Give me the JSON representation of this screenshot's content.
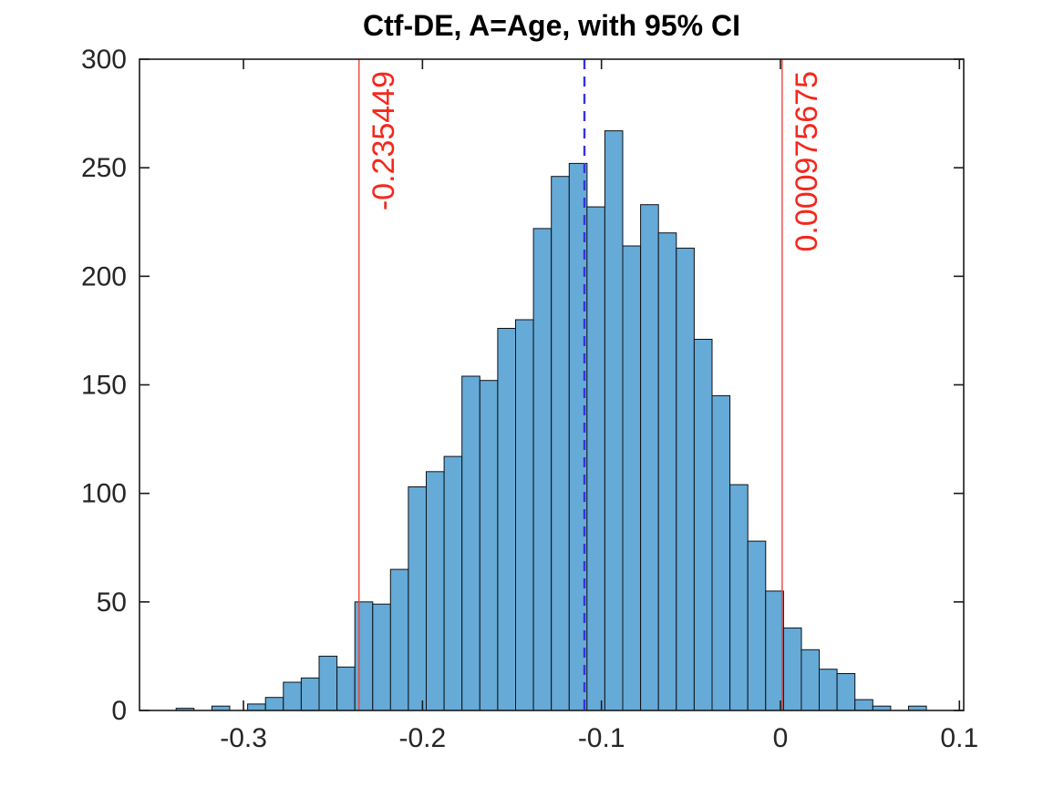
{
  "title": "Ctf-DE, A=Age, with 95% CI",
  "chart_data": {
    "type": "bar",
    "subtype": "histogram",
    "title": "Ctf-DE, A=Age, with 95% CI",
    "xlabel": "",
    "ylabel": "",
    "bin_start": -0.3376,
    "bin_width": 0.00998,
    "counts": [
      1,
      0,
      2,
      0,
      3,
      6,
      13,
      15,
      25,
      20,
      50,
      49,
      65,
      103,
      110,
      117,
      154,
      152,
      176,
      180,
      222,
      246,
      252,
      232,
      267,
      214,
      233,
      220,
      213,
      171,
      145,
      104,
      78,
      55,
      38,
      28,
      19,
      17,
      5,
      2,
      0,
      2
    ],
    "total_samples": 4004,
    "xlim": [
      -0.3581,
      0.1024
    ],
    "ylim": [
      0,
      300
    ],
    "x_ticks": [
      -0.3,
      -0.2,
      -0.1,
      0,
      0.1
    ],
    "x_tick_labels": [
      "-0.3",
      "-0.2",
      "-0.1",
      "0",
      "0.1"
    ],
    "y_ticks": [
      0,
      50,
      100,
      150,
      200,
      250,
      300
    ],
    "y_tick_labels": [
      "0",
      "50",
      "100",
      "150",
      "200",
      "250",
      "300"
    ],
    "grid": false,
    "legend": "none",
    "ci_lower": {
      "value": -0.235449,
      "label": "-0.235449"
    },
    "ci_upper": {
      "value": 0.000975675,
      "label": "0.000975675"
    },
    "estimate_line": {
      "value": -0.1095,
      "style": "dashed"
    },
    "colors": {
      "bar_fill": "#66AAD7",
      "bar_edge": "#0D1117",
      "ci_line": "#E8463A",
      "ci_text": "#F5271C",
      "estimate_line": "#3333E0",
      "axis": "#1A1A1A",
      "tick_text": "#262626",
      "background": "#FFFFFF"
    }
  }
}
